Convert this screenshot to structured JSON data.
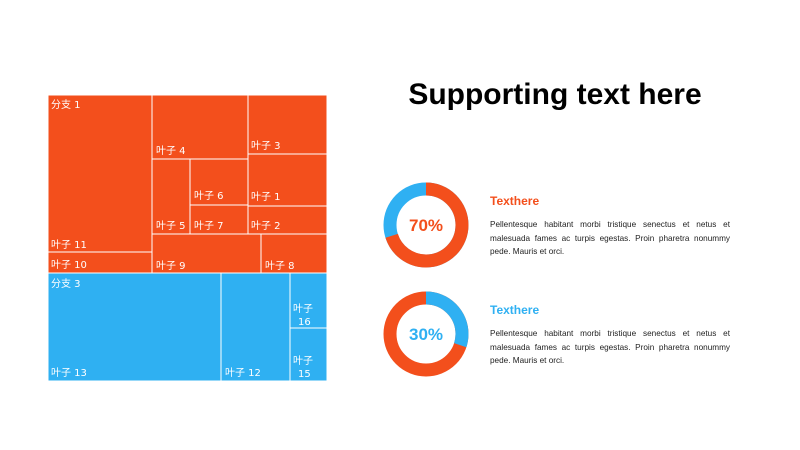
{
  "title": "Supporting text here",
  "colors": {
    "orange": "#f34f1c",
    "blue": "#2fb0f2",
    "text_dark": "#222222"
  },
  "chart_data": [
    {
      "type": "treemap",
      "groups": [
        {
          "name": "分支 1",
          "color": "#f34f1c",
          "leaves": [
            "叶子 11",
            "叶子 10",
            "叶子 4",
            "叶子 5",
            "叶子 6",
            "叶子 7",
            "叶子 3",
            "叶子 1",
            "叶子 2",
            "叶子 9",
            "叶子 8"
          ]
        },
        {
          "name": "分支 3",
          "color": "#2fb0f2",
          "leaves": [
            "叶子 13",
            "叶子 12",
            "叶子 16",
            "叶子 15"
          ]
        }
      ]
    },
    {
      "type": "donut",
      "value": 70,
      "label": "70%",
      "color": "#f34f1c",
      "track_color": "#2fb0f2"
    },
    {
      "type": "donut",
      "value": 30,
      "label": "30%",
      "color": "#2fb0f2",
      "track_color": "#f34f1c"
    }
  ],
  "info_blocks": [
    {
      "title": "Texthere",
      "title_color": "#f34f1c",
      "body": "Pellentesque habitant morbi tristique senectus et netus et malesuada fames ac turpis egestas. Proin pharetra nonummy pede. Mauris et orci."
    },
    {
      "title": "Texthere",
      "title_color": "#2fb0f2",
      "body": "Pellentesque habitant morbi tristique senectus et netus et malesuada fames ac turpis egestas. Proin pharetra nonummy pede. Mauris et orci."
    }
  ]
}
